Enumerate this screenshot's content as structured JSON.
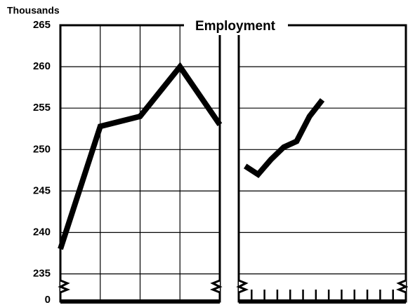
{
  "chart_data": [
    {
      "type": "line",
      "title": "Employment",
      "ylabel": "Thousands",
      "categories": [
        null,
        null,
        null,
        null,
        null
      ],
      "values": [
        238,
        252.8,
        254,
        260,
        253
      ],
      "color": "#000000",
      "ylim": [
        235,
        265
      ],
      "yticks": [
        235,
        240,
        245,
        250,
        255,
        260,
        265
      ],
      "axis_break_tick": 0,
      "grid": true
    },
    {
      "type": "line",
      "categories": [
        null,
        null,
        null,
        null,
        null,
        null,
        null,
        null,
        null,
        null,
        null,
        null,
        null
      ],
      "values": [
        248,
        247,
        248.8,
        250.3,
        251,
        254,
        256,
        null,
        null,
        null,
        null,
        null,
        null
      ],
      "color": "#000000",
      "ylim": [
        235,
        265
      ],
      "grid": true
    }
  ]
}
